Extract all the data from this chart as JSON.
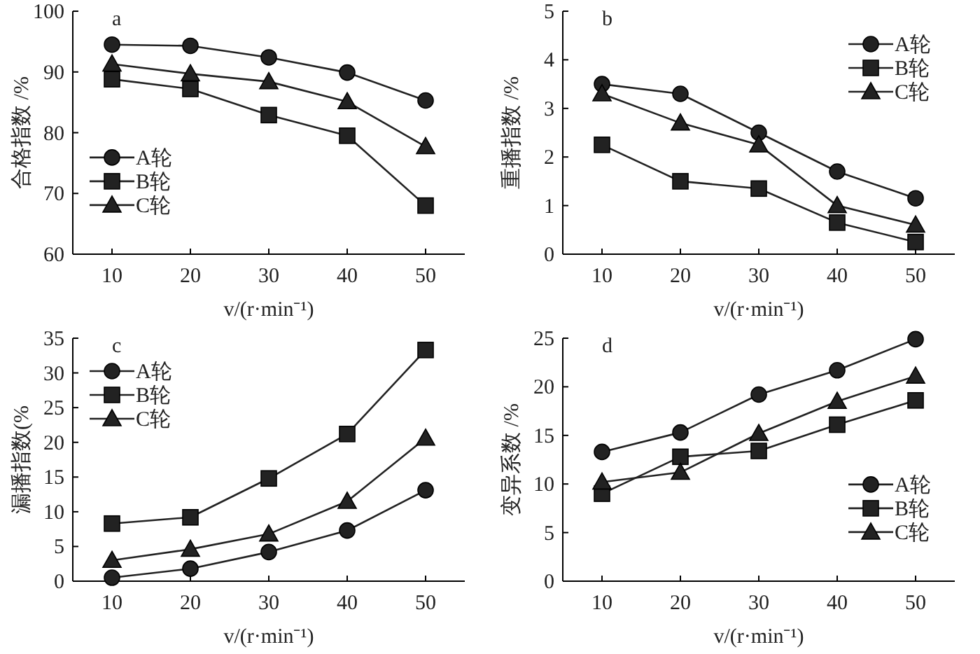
{
  "chart_data": [
    {
      "type": "line",
      "title": "a",
      "xlabel": "v/(r·min⁻¹)",
      "ylabel": "合格指数 /%",
      "x": [
        10,
        20,
        30,
        40,
        50
      ],
      "xlim": [
        5,
        55
      ],
      "xticks": [
        10,
        20,
        30,
        40,
        50
      ],
      "ylim": [
        60,
        100
      ],
      "yticks": [
        60,
        70,
        80,
        90,
        100
      ],
      "legend": "left",
      "series": [
        {
          "name": "A轮",
          "color": "#222222",
          "marker": "circle",
          "values": [
            94.5,
            94.3,
            92.4,
            89.9,
            85.3
          ]
        },
        {
          "name": "B轮",
          "color": "#222222",
          "marker": "square",
          "values": [
            88.8,
            87.2,
            82.9,
            79.5,
            68.0
          ]
        },
        {
          "name": "C轮",
          "color": "#222222",
          "marker": "triangle",
          "values": [
            91.3,
            89.7,
            88.4,
            85.1,
            77.7
          ]
        }
      ]
    },
    {
      "type": "line",
      "title": "b",
      "xlabel": "v/(r·min⁻¹)",
      "ylabel": "重播指数 /%",
      "x": [
        10,
        20,
        30,
        40,
        50
      ],
      "xlim": [
        5,
        55
      ],
      "xticks": [
        10,
        20,
        30,
        40,
        50
      ],
      "ylim": [
        0,
        5
      ],
      "yticks": [
        0,
        1,
        2,
        3,
        4,
        5
      ],
      "legend": "top right",
      "series": [
        {
          "name": "A轮",
          "color": "#222222",
          "marker": "circle",
          "values": [
            3.5,
            3.3,
            2.5,
            1.7,
            1.15
          ]
        },
        {
          "name": "B轮",
          "color": "#222222",
          "marker": "square",
          "values": [
            2.25,
            1.5,
            1.35,
            0.65,
            0.25
          ]
        },
        {
          "name": "C轮",
          "color": "#222222",
          "marker": "triangle",
          "values": [
            3.3,
            2.7,
            2.25,
            1.0,
            0.6
          ]
        }
      ]
    },
    {
      "type": "line",
      "title": "c",
      "xlabel": "v/(r·min⁻¹)",
      "ylabel": "漏播指数(%",
      "x": [
        10,
        20,
        30,
        40,
        50
      ],
      "xlim": [
        5,
        55
      ],
      "xticks": [
        10,
        20,
        30,
        40,
        50
      ],
      "ylim": [
        0,
        35
      ],
      "yticks": [
        0,
        5,
        10,
        15,
        20,
        25,
        30,
        35
      ],
      "legend": "top left",
      "series": [
        {
          "name": "A轮",
          "color": "#222222",
          "marker": "circle",
          "values": [
            0.5,
            1.8,
            4.2,
            7.3,
            13.1
          ]
        },
        {
          "name": "B轮",
          "color": "#222222",
          "marker": "square",
          "values": [
            8.3,
            9.2,
            14.8,
            21.2,
            33.3
          ]
        },
        {
          "name": "C轮",
          "color": "#222222",
          "marker": "triangle",
          "values": [
            3.0,
            4.6,
            6.8,
            11.5,
            20.6
          ]
        }
      ]
    },
    {
      "type": "line",
      "title": "d",
      "xlabel": "v/(r·min⁻¹)",
      "ylabel": "变异系数 /%",
      "x": [
        10,
        20,
        30,
        40,
        50
      ],
      "xlim": [
        5,
        55
      ],
      "xticks": [
        10,
        20,
        30,
        40,
        50
      ],
      "ylim": [
        0,
        25
      ],
      "yticks": [
        0,
        5,
        10,
        15,
        20,
        25
      ],
      "legend": "right",
      "series": [
        {
          "name": "A轮",
          "color": "#222222",
          "marker": "circle",
          "values": [
            13.3,
            15.3,
            19.2,
            21.7,
            24.9
          ]
        },
        {
          "name": "B轮",
          "color": "#222222",
          "marker": "square",
          "values": [
            9.0,
            12.8,
            13.4,
            16.1,
            18.6
          ]
        },
        {
          "name": "C轮",
          "color": "#222222",
          "marker": "triangle",
          "values": [
            10.2,
            11.2,
            15.2,
            18.5,
            21.1
          ]
        }
      ]
    }
  ]
}
